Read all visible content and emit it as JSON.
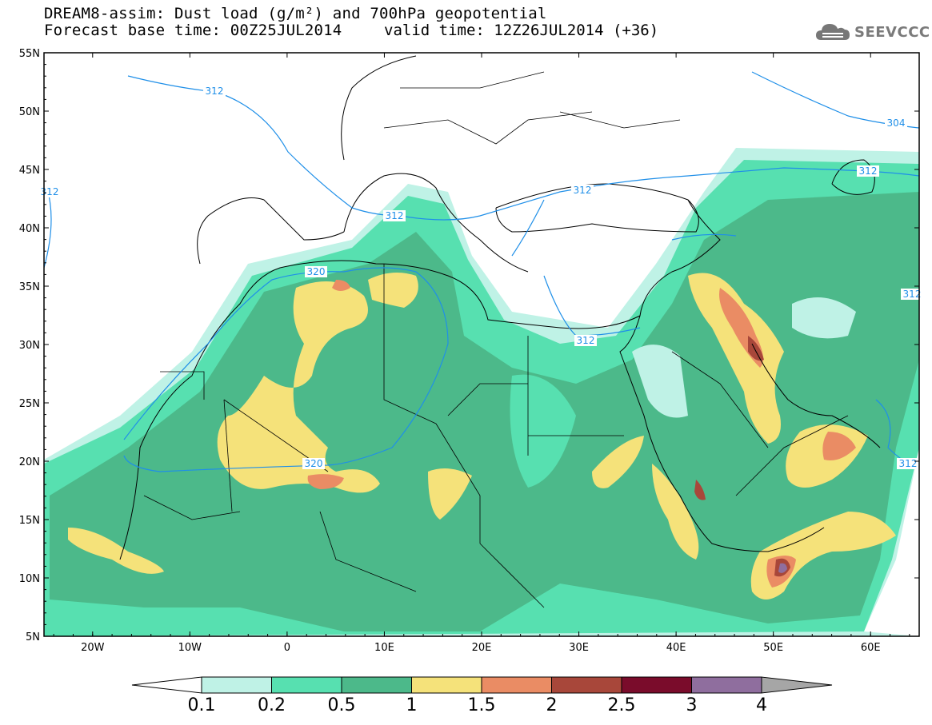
{
  "header": {
    "title_line1": "DREAM8-assim: Dust load (g/m²) and 700hPa geopotential",
    "title_line2": "Forecast base time: 00Z25JUL2014",
    "valid_time": "valid time: 12Z26JUL2014 (+36)",
    "logo_text": "SEEVCCC"
  },
  "map": {
    "lat_labels": [
      "55N",
      "50N",
      "45N",
      "40N",
      "35N",
      "30N",
      "25N",
      "20N",
      "15N",
      "10N",
      "5N"
    ],
    "lon_labels": [
      "20W",
      "10W",
      "0",
      "10E",
      "20E",
      "30E",
      "40E",
      "50E",
      "60E"
    ],
    "contour_labels": [
      "312",
      "312",
      "312",
      "320",
      "312",
      "320",
      "304",
      "312",
      "312",
      "312",
      "312"
    ],
    "legend": {
      "ticks": [
        "0.1",
        "0.2",
        "0.5",
        "1",
        "1.5",
        "2",
        "2.5",
        "3",
        "4"
      ],
      "colors": [
        "#bff2e6",
        "#57e0b0",
        "#4cb98a",
        "#f5e27a",
        "#ea8c64",
        "#a8473a",
        "#7a0c2b",
        "#8f6e9e"
      ],
      "over_color": "#a6a6a6",
      "under_color": "#ffffff"
    }
  }
}
